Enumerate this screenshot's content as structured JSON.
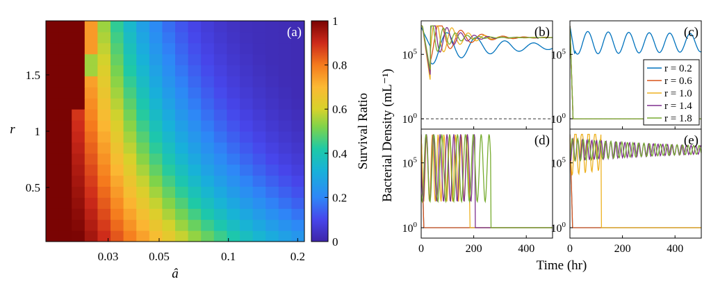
{
  "chart_data": [
    {
      "panel": "(a)",
      "type": "heatmap",
      "xlabel": "â",
      "ylabel": "r",
      "x_scale": "log",
      "xlim": [
        0.0161,
        0.2139
      ],
      "ylim": [
        0.02,
        1.98
      ],
      "x_ticks": [
        0.03,
        0.05,
        0.1,
        0.2
      ],
      "x_tick_labels": [
        "0.03",
        "0.05",
        "0.1",
        "0.2"
      ],
      "y_ticks": [
        0.5,
        1,
        1.5
      ],
      "y_tick_labels": [
        "0.5",
        "1",
        "1.5"
      ],
      "grid_x_count": 20,
      "grid_y_count": 20,
      "colorbar_label": "Survival Ratio",
      "colorbar_range": [
        0,
        1
      ],
      "colorbar_ticks": [
        0,
        0.2,
        0.4,
        0.6,
        0.8,
        1
      ],
      "colorbar_tick_labels": [
        "0",
        "0.2",
        "0.4",
        "0.6",
        "0.8",
        "1"
      ],
      "description": "survival ratio is 1 for small â and falls through green/cyan to near 0 for large â and large r"
    },
    {
      "type": "line",
      "layout": "2x2 small multiples",
      "panels": [
        "(b)",
        "(c)",
        "(d)",
        "(e)"
      ],
      "xlabel": "Time (hr)",
      "ylabel": "Bacterial Density (mL⁻¹)",
      "y_scale": "log",
      "xlim": [
        0,
        500
      ],
      "x_ticks": [
        0,
        200,
        400
      ],
      "x_tick_labels": [
        "0",
        "200",
        "400"
      ],
      "y_ticks": [
        1,
        100000
      ],
      "y_tick_bases": [
        "10",
        "10"
      ],
      "y_tick_exponents": [
        "0",
        "5"
      ],
      "reference_line": {
        "y": 1,
        "style": "dashed",
        "color": "#333333"
      },
      "legend": {
        "location": "panel (c), lower-right",
        "entries": [
          "r = 0.2",
          "r = 0.6",
          "r = 1.0",
          "r = 1.4",
          "r = 1.8"
        ]
      },
      "series": [
        {
          "name": "r = 0.2",
          "color": "#0072BD"
        },
        {
          "name": "r = 0.6",
          "color": "#D95319"
        },
        {
          "name": "r = 1.0",
          "color": "#EDB120"
        },
        {
          "name": "r = 1.4",
          "color": "#7E2F8E"
        },
        {
          "name": "r = 1.8",
          "color": "#77AC30"
        }
      ]
    }
  ]
}
